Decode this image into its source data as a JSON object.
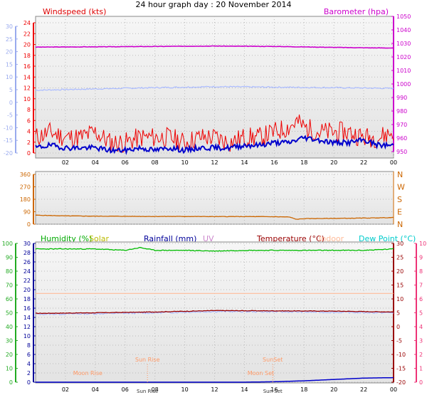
{
  "header": {
    "title": "24 hour graph day : 20 November 2014"
  },
  "colors": {
    "wind": "#ee0000",
    "wind_avg": "#0000cc",
    "barometer": "#cc00cc",
    "temp_axis": "#99aaee",
    "temp_line": "#aabbff",
    "direction": "#cc6600",
    "humidity": "#00bb00",
    "solar": "#bbbb00",
    "rain": "#000099",
    "uv": "#cc88cc",
    "temperature": "#990000",
    "indoor": "#ffbb99",
    "dewpoint": "#00cccc",
    "moon": "#ff9966",
    "humidity_axis": "#22aa22",
    "panel": "#e3e3e3"
  },
  "chart_data": [
    {
      "type": "line",
      "title": "Windspeed (kts)",
      "y2label": "Barometer (hpa)",
      "x_ticks": [
        "02",
        "04",
        "06",
        "08",
        "10",
        "12",
        "14",
        "16",
        "18",
        "20",
        "22",
        "00"
      ],
      "x_range_hours": [
        0,
        24
      ],
      "y_left_far": {
        "ticks": [
          "30",
          "25",
          "20",
          "15",
          "10",
          "5",
          "0",
          "-5",
          "-10",
          "-15",
          "-20"
        ],
        "range": [
          -20,
          30
        ]
      },
      "y_left": {
        "ticks": [
          "24",
          "22",
          "20",
          "18",
          "16",
          "14",
          "12",
          "10",
          "8",
          "6",
          "4",
          "2",
          "0"
        ],
        "range": [
          0,
          25
        ]
      },
      "y_right": {
        "ticks": [
          "1050",
          "1040",
          "1030",
          "1020",
          "1010",
          "1000",
          "990",
          "980",
          "970",
          "960",
          "950"
        ],
        "range": [
          946,
          1052
        ]
      },
      "series": [
        {
          "name": "Barometer (hpa)",
          "axis": "right",
          "x": [
            0,
            4,
            8,
            12,
            16,
            20,
            22,
            24
          ],
          "values": [
            1029,
            1029.2,
            1029.5,
            1029.8,
            1029.5,
            1028.8,
            1028.5,
            1028.3
          ]
        },
        {
          "name": "",
          "axis": "left_far",
          "x": [
            0,
            4,
            8,
            12,
            16,
            20,
            24
          ],
          "values": [
            4.8,
            5.3,
            5.8,
            6.2,
            6.0,
            5.8,
            5.5
          ]
        },
        {
          "name": "Windspeed (kts)",
          "axis": "left",
          "x": [
            0,
            1,
            2,
            3,
            4,
            5,
            6,
            7,
            8,
            9,
            10,
            11,
            12,
            13,
            14,
            15,
            16,
            17,
            17.5,
            18,
            19,
            20,
            21,
            22,
            23,
            24
          ],
          "values": [
            3,
            4,
            3,
            3,
            4,
            2,
            2,
            3,
            3,
            3,
            2,
            3,
            3,
            2,
            3,
            3,
            4,
            5,
            6,
            5,
            4,
            4,
            4,
            3,
            3,
            4
          ]
        },
        {
          "name": "",
          "axis": "left",
          "x": [
            0,
            1,
            2,
            3,
            4,
            5,
            6,
            7,
            8,
            9,
            10,
            11,
            12,
            13,
            14,
            15,
            16,
            17,
            18,
            19,
            20,
            21,
            22,
            23,
            24
          ],
          "values": [
            1,
            1.5,
            1,
            1,
            1,
            0.5,
            0.5,
            1,
            0.5,
            1,
            0.5,
            1,
            1,
            1,
            1.5,
            1.5,
            2,
            2,
            3,
            2.5,
            2,
            2,
            2.5,
            1.5,
            1.5
          ]
        }
      ]
    },
    {
      "type": "line",
      "y_ticks": [
        "360",
        "270",
        "180",
        "90",
        "0"
      ],
      "y_range": [
        0,
        360
      ],
      "compass": [
        "N",
        "W",
        "S",
        "E",
        "N"
      ],
      "series": [
        {
          "name": "",
          "x": [
            0,
            2,
            4,
            6,
            8,
            10,
            12,
            14,
            16,
            17,
            17.5,
            18,
            20,
            22,
            24
          ],
          "values": [
            65,
            60,
            58,
            57,
            56,
            56,
            55,
            55,
            54,
            52,
            35,
            40,
            42,
            44,
            48
          ]
        }
      ]
    },
    {
      "type": "line",
      "legend": [
        "Humidity (%)",
        "Solar",
        "Rainfall (mm)",
        "UV",
        "Temperature (°C)",
        "Indoor",
        "Dew Point (°C)"
      ],
      "y_far_left": {
        "ticks": [
          "100",
          "90",
          "80",
          "70",
          "60",
          "50",
          "40",
          "30",
          "20",
          "10",
          "0"
        ],
        "range": [
          0,
          100
        ]
      },
      "y_left": {
        "ticks": [
          "30",
          "28",
          "26",
          "24",
          "22",
          "20",
          "18",
          "16",
          "14",
          "12",
          "10",
          "8",
          "6",
          "4",
          "2",
          "0"
        ],
        "range": [
          0,
          30.5
        ]
      },
      "y_right": {
        "ticks": [
          "30",
          "25",
          "20",
          "15",
          "10",
          "5",
          "0",
          "-5",
          "-10",
          "-15",
          "-20"
        ],
        "range": [
          -20,
          30
        ]
      },
      "y_far_right": {
        "ticks": [
          "10",
          "9",
          "8",
          "7",
          "6",
          "5",
          "4",
          "3",
          "2",
          "1",
          "0"
        ],
        "range": [
          0,
          10
        ]
      },
      "annotations": [
        {
          "label": "Sun Rise",
          "hour": 7.5,
          "row": "upper"
        },
        {
          "label": "SunSet",
          "hour": 15.9,
          "row": "upper"
        },
        {
          "label": "Moon Rise",
          "hour": 3.5,
          "row": "lower"
        },
        {
          "label": "Moon Set",
          "hour": 15.1,
          "row": "lower"
        },
        {
          "label": "Sun Rise",
          "hour": 7.5,
          "row": "axis"
        },
        {
          "label": "Sun Set",
          "hour": 15.9,
          "row": "axis"
        }
      ],
      "series": [
        {
          "name": "Humidity (%)",
          "axis": "far_left",
          "x": [
            0,
            2,
            4,
            6,
            7,
            8,
            10,
            12,
            14,
            16,
            18,
            20,
            22,
            24
          ],
          "values": [
            96,
            96,
            96,
            95,
            97,
            95,
            95,
            94.5,
            95,
            95,
            95,
            95,
            95,
            96
          ]
        },
        {
          "name": "Temperature (°C)",
          "axis": "right",
          "x": [
            0,
            4,
            8,
            12,
            16,
            20,
            24
          ],
          "values": [
            4.8,
            5.0,
            5.3,
            5.8,
            5.7,
            5.6,
            5.3
          ]
        },
        {
          "name": "Dew Point (°C)",
          "axis": "right",
          "x": [
            0,
            4,
            8,
            12,
            16,
            20,
            24
          ],
          "values": [
            4.5,
            4.7,
            5.0,
            5.5,
            5.4,
            5.2,
            5.0
          ]
        },
        {
          "name": "Indoor",
          "axis": "left",
          "x": [
            0,
            24
          ],
          "values": [
            19.5,
            19.5
          ]
        },
        {
          "name": "Rainfall (mm)",
          "axis": "left",
          "x": [
            0,
            14,
            16,
            18,
            20,
            22,
            24
          ],
          "values": [
            0,
            0,
            0.1,
            0.3,
            0.6,
            0.9,
            1.0
          ]
        }
      ]
    }
  ]
}
